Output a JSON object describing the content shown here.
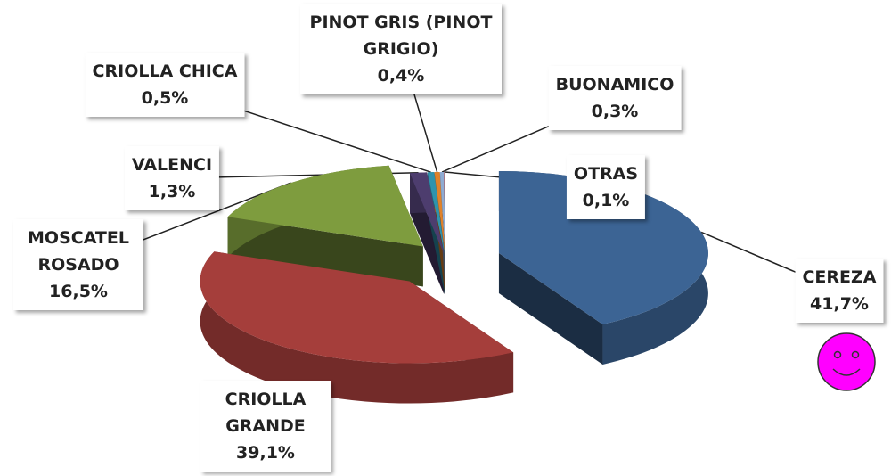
{
  "chart_data": {
    "type": "pie",
    "categories": [
      "CEREZA",
      "CRIOLLA GRANDE",
      "MOSCATEL ROSADO",
      "VALENCI",
      "CRIOLLA CHICA",
      "PINOT GRIS (PINOT GRIGIO)",
      "BUONAMICO",
      "OTRAS"
    ],
    "values": [
      41.7,
      39.1,
      16.5,
      1.3,
      0.5,
      0.4,
      0.3,
      0.1
    ],
    "value_labels": [
      "41,7%",
      "39,1%",
      "16,5%",
      "1,3%",
      "0,5%",
      "0,4%",
      "0,3%",
      "0,1%"
    ],
    "colors": [
      "#3c6494",
      "#a53e3b",
      "#7e9c3e",
      "#4d3d6e",
      "#2f93ad",
      "#e0822a",
      "#8eabd2",
      "#c0504d"
    ]
  }
}
